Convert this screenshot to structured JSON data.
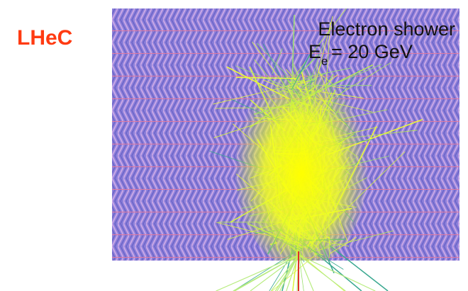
{
  "label": "LHeC",
  "caption": {
    "line1": "Electron shower",
    "energy_symbol": "E",
    "energy_subscript": "e",
    "energy_value": "= 20 GeV"
  }
}
